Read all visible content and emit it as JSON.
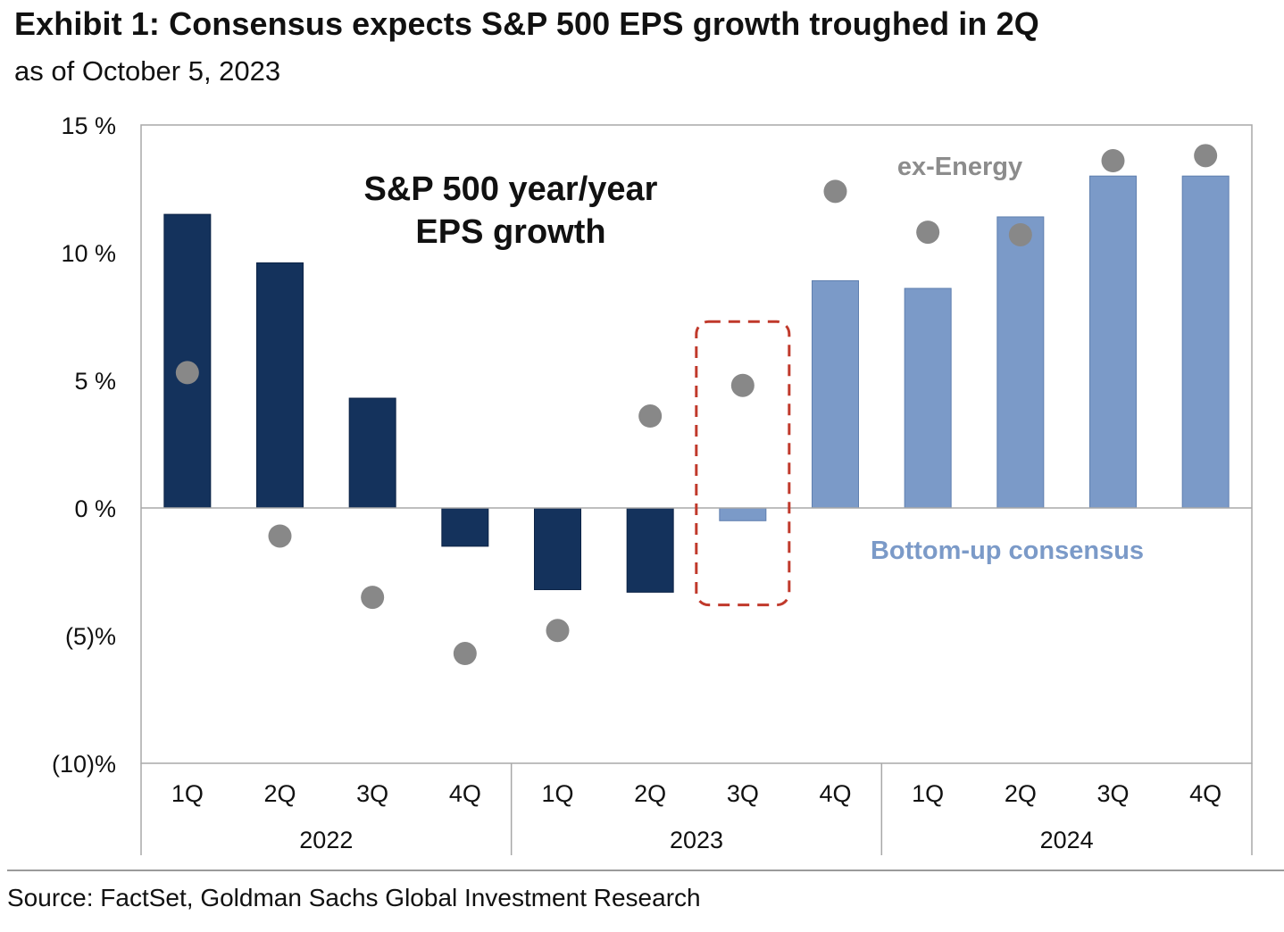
{
  "header": {
    "title": "Exhibit 1: Consensus expects S&P 500 EPS growth troughed in 2Q",
    "subtitle": "as of October 5, 2023"
  },
  "footer": {
    "source": "Source: FactSet, Goldman Sachs Global Investment Research"
  },
  "colors": {
    "actual_bar": "#14325c",
    "consensus_bar": "#7b9ac8",
    "ex_energy_dot": "#888888",
    "highlight_box": "#c0392b",
    "axis": "#9a9a9a"
  },
  "chart_data": {
    "type": "bar",
    "title": "S&P 500 year/year EPS growth",
    "title_lines": [
      "S&P 500 year/year",
      "EPS growth"
    ],
    "categories": [
      "1Q",
      "2Q",
      "3Q",
      "4Q",
      "1Q",
      "2Q",
      "3Q",
      "4Q",
      "1Q",
      "2Q",
      "3Q",
      "4Q"
    ],
    "year_groups": [
      {
        "label": "2022",
        "start": 0,
        "end": 3
      },
      {
        "label": "2023",
        "start": 4,
        "end": 7
      },
      {
        "label": "2024",
        "start": 8,
        "end": 11
      }
    ],
    "ylim": [
      -10,
      15
    ],
    "yticks": [
      15,
      10,
      5,
      0,
      -5,
      -10
    ],
    "ytick_labels": [
      "15 %",
      "10 %",
      "5 %",
      "0 %",
      "(5)%",
      "(10)%"
    ],
    "series": [
      {
        "name": "S&P 500 year/year EPS growth",
        "kind": "bar",
        "values": [
          11.5,
          9.6,
          4.3,
          -1.5,
          -3.2,
          -3.3,
          -0.5,
          8.9,
          8.6,
          11.4,
          13.0,
          13.0
        ],
        "colors": [
          "actual",
          "actual",
          "actual",
          "actual",
          "actual",
          "actual",
          "consensus",
          "consensus",
          "consensus",
          "consensus",
          "consensus",
          "consensus"
        ]
      },
      {
        "name": "ex-Energy",
        "kind": "scatter",
        "values": [
          5.3,
          -1.1,
          -3.5,
          -5.7,
          -4.8,
          3.6,
          4.8,
          12.4,
          10.8,
          10.7,
          13.6,
          13.8
        ]
      }
    ],
    "annotations": {
      "ex_energy_label": "ex-Energy",
      "consensus_label": "Bottom-up consensus"
    },
    "highlight": {
      "category_index": 6,
      "ymin": -3.8,
      "ymax": 7.3
    }
  }
}
